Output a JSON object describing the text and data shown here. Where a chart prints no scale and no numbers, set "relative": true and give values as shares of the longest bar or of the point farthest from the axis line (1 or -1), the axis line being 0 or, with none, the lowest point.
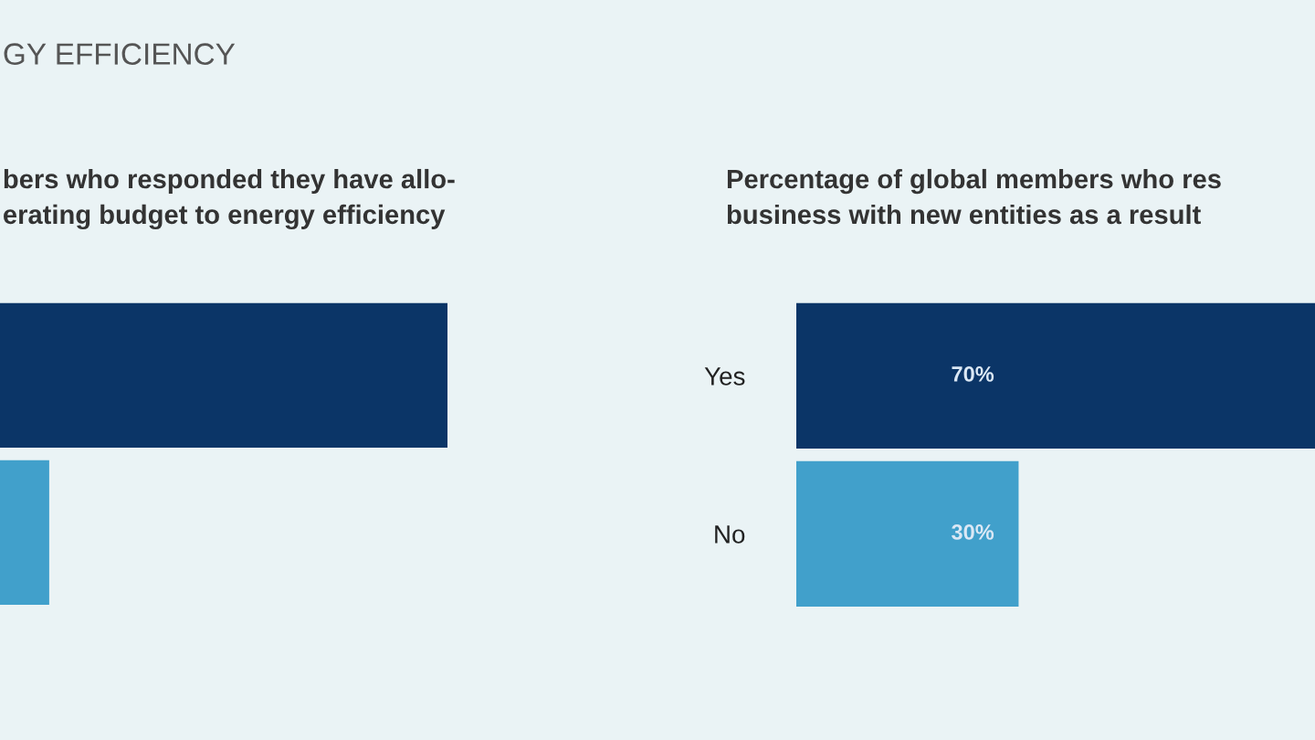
{
  "chart_data": [
    {
      "type": "bar",
      "orientation": "horizontal",
      "relative": true,
      "title": "GY EFFICIENCY",
      "subtitle": "bers who responded they have allo-\nerating budget to energy efficiency",
      "categories": [
        null,
        null
      ],
      "colors": [
        "#0b3567",
        "#41a0cb"
      ],
      "values": [
        1,
        0.11
      ]
    },
    {
      "type": "bar",
      "orientation": "horizontal",
      "title": "Percentage of global members who res\nbusiness with new entities as a result",
      "categories": [
        "Yes",
        "No"
      ],
      "colors": [
        "#0b3567",
        "#41a0cb"
      ],
      "values": [
        70,
        30
      ],
      "value_labels": [
        "70%",
        "30%"
      ],
      "xlim": [
        0,
        70
      ]
    }
  ]
}
